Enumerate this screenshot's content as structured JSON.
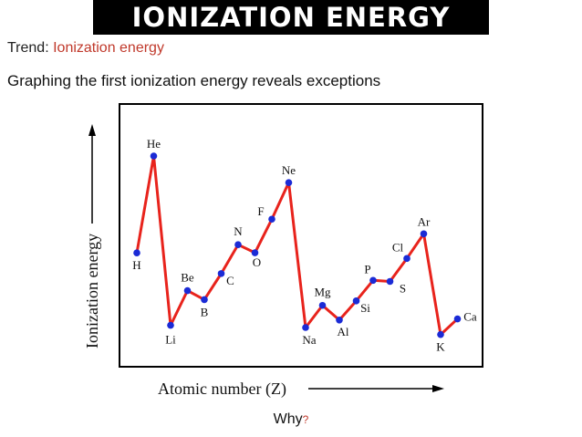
{
  "header": {
    "title": "IONIZATION ENERGY",
    "trend_prefix": "Trend: ",
    "trend_value": "Ionization energy",
    "lead": "Graphing the first ionization energy reveals exceptions"
  },
  "footer": {
    "text": "Why",
    "mark": "?"
  },
  "colors": {
    "line": "#e8231c",
    "point": "#1b2bd6",
    "accent": "#c0392b",
    "title_bg": "#000000"
  },
  "chart_data": {
    "type": "line",
    "xlabel": "Atomic number (Z)",
    "ylabel": "Ionization energy",
    "x": [
      1,
      2,
      3,
      4,
      5,
      6,
      7,
      8,
      9,
      10,
      11,
      12,
      13,
      14,
      15,
      16,
      17,
      18,
      19,
      20
    ],
    "categories": [
      "H",
      "He",
      "Li",
      "Be",
      "B",
      "C",
      "N",
      "O",
      "F",
      "Ne",
      "Na",
      "Mg",
      "Al",
      "Si",
      "P",
      "S",
      "Cl",
      "Ar",
      "K",
      "Ca"
    ],
    "values": [
      1312,
      2372,
      520,
      900,
      801,
      1086,
      1402,
      1314,
      1681,
      2081,
      496,
      738,
      578,
      787,
      1012,
      1000,
      1251,
      1521,
      419,
      590
    ],
    "ylim": [
      300,
      2600
    ],
    "grid": false,
    "legend": "none"
  }
}
